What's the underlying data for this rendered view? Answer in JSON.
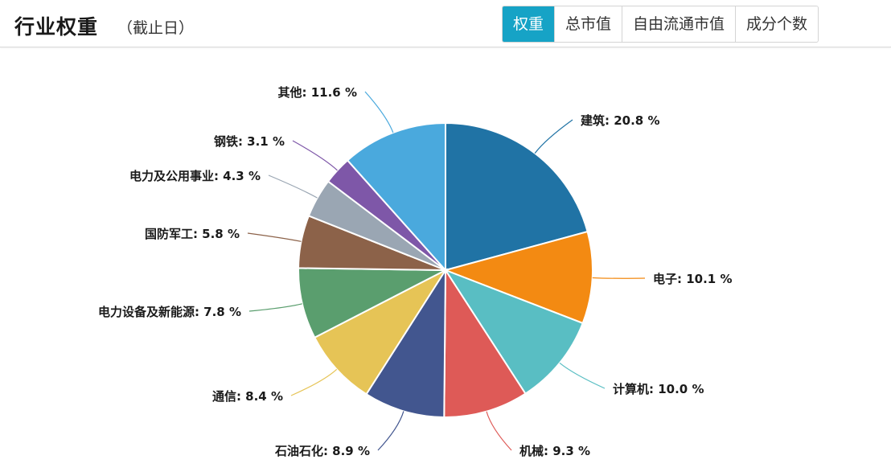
{
  "header": {
    "title": "行业权重",
    "subtitle": "（截止日）",
    "tabs": [
      {
        "label": "权重",
        "active": true
      },
      {
        "label": "总市值",
        "active": false
      },
      {
        "label": "自由流通市值",
        "active": false
      },
      {
        "label": "成分个数",
        "active": false
      }
    ]
  },
  "chart_data": {
    "type": "pie",
    "title": "行业权重",
    "start_angle": "12 o'clock, clockwise",
    "categories": [
      "建筑",
      "电子",
      "计算机",
      "机械",
      "石油石化",
      "通信",
      "电力设备及新能源",
      "国防军工",
      "电力及公用事业",
      "钢铁",
      "其他"
    ],
    "values": [
      20.8,
      10.1,
      10.0,
      9.3,
      8.9,
      8.4,
      7.8,
      5.8,
      4.3,
      3.1,
      11.6
    ],
    "colors": [
      "#2073a5",
      "#f38a12",
      "#59bec3",
      "#de5a57",
      "#42568f",
      "#e6c456",
      "#5a9e6e",
      "#8c6249",
      "#9aa6b3",
      "#7e57a8",
      "#4aa9dd"
    ],
    "labels": [
      "建筑: 20.8 %",
      "电子: 10.1 %",
      "计算机: 10.0 %",
      "机械: 9.3 %",
      "石油石化: 8.9 %",
      "通信: 8.4 %",
      "电力设备及新能源: 7.8 %",
      "国防军工: 5.8 %",
      "电力及公用事业: 4.3 %",
      "钢铁: 3.1 %",
      "其他: 11.6 %"
    ],
    "legend": "none (outside labels with leader lines)",
    "unit": "%"
  }
}
